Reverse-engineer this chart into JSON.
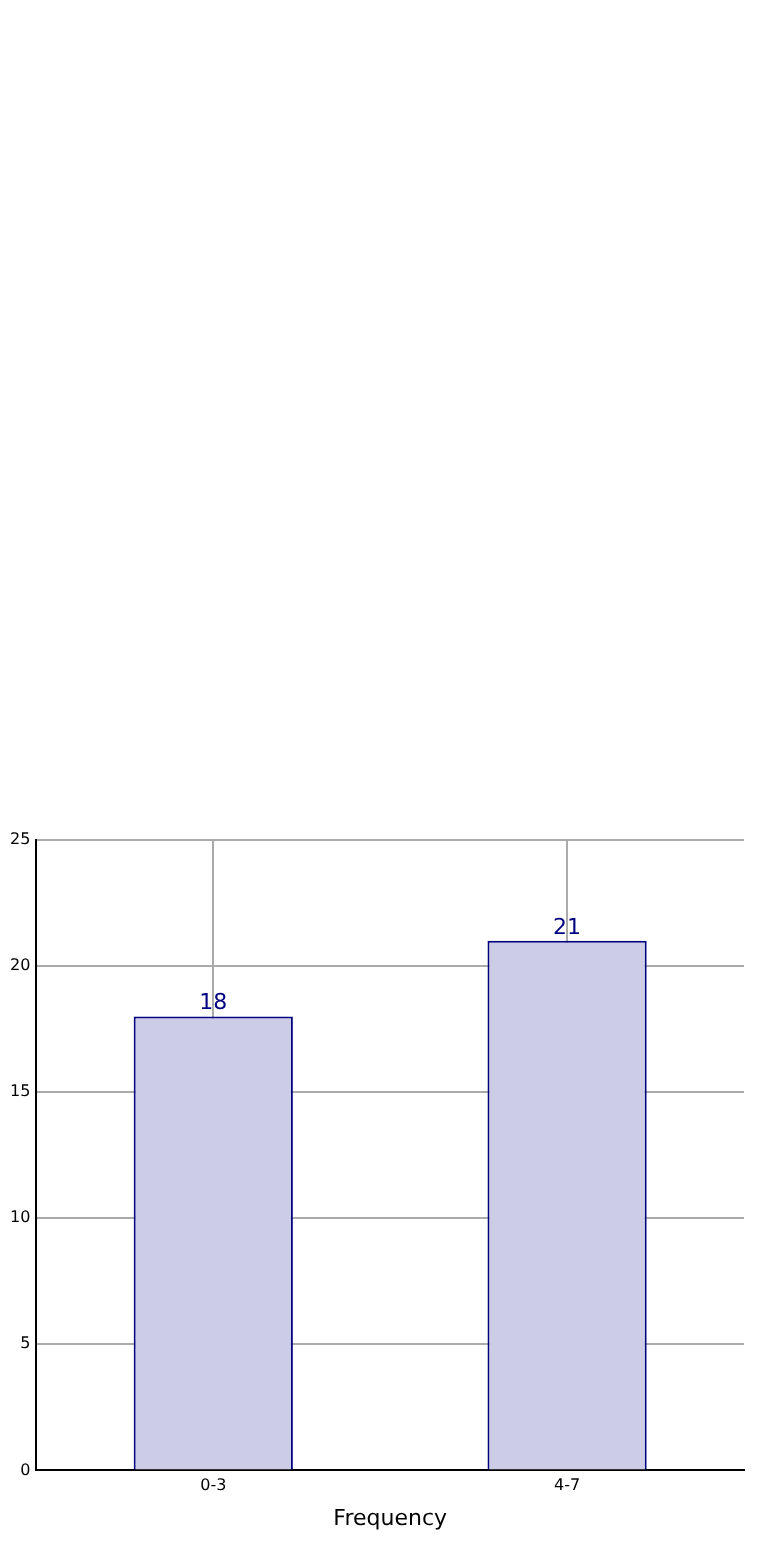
{
  "chart_data": {
    "type": "bar",
    "xlabel": "Frequency",
    "categories": [
      "0-3",
      "4-7"
    ],
    "values": [
      18,
      21
    ],
    "color": "#cccce6",
    "ylim": [
      0,
      25
    ],
    "yticks": [
      0,
      5,
      10,
      15,
      20,
      25
    ],
    "grid": true,
    "legend": false,
    "data_labels": true
  }
}
